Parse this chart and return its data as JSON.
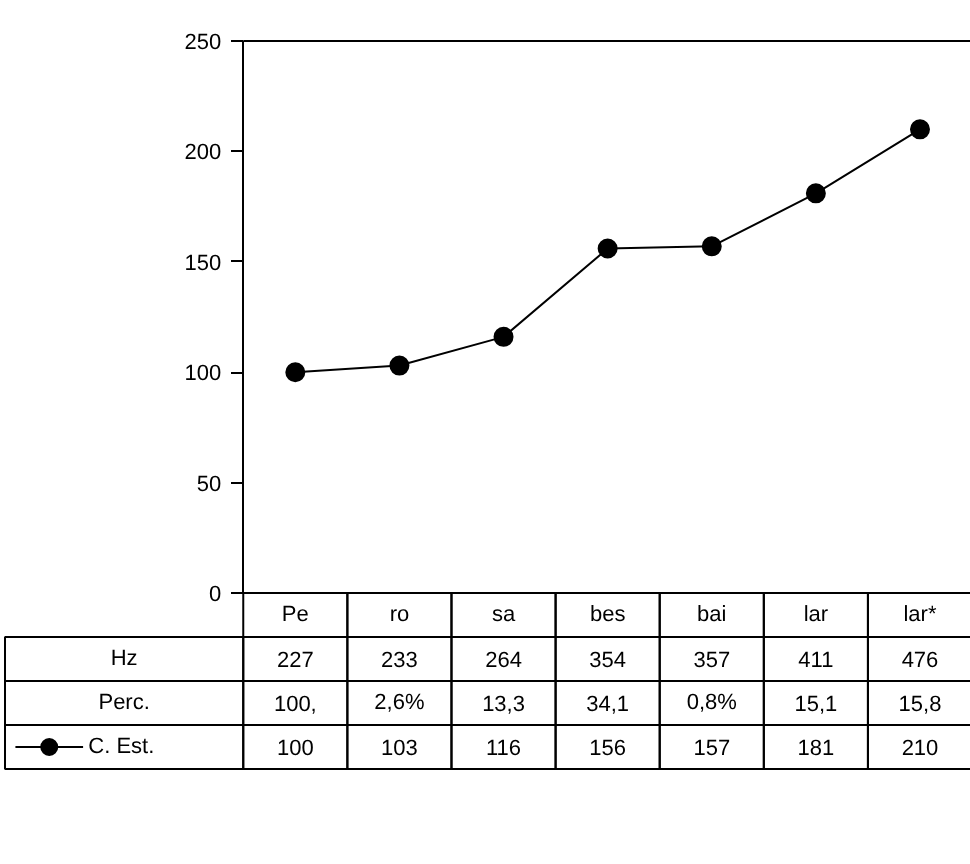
{
  "chart_data": {
    "type": "line",
    "categories": [
      "Pe",
      "ro",
      "sa",
      "bes",
      "bai",
      "lar",
      "lar*"
    ],
    "series": [
      {
        "name": "C. Est.",
        "color": "#000000",
        "values": [
          100,
          103,
          116,
          156,
          157,
          181,
          210
        ]
      }
    ],
    "ylim": [
      0,
      250
    ],
    "yticks": [
      0,
      50,
      100,
      150,
      200,
      250
    ],
    "grid": false,
    "marker": "circle",
    "line_style": "solid",
    "legend": "bottom",
    "data_labels": true,
    "annotations": [
      "Hz",
      "227",
      "233",
      "264",
      "354",
      "357",
      "411",
      "476",
      "Perc.",
      "100,",
      "2,6%",
      "13,3",
      "34,1",
      "0,8%",
      "15,1",
      "15,8"
    ]
  }
}
